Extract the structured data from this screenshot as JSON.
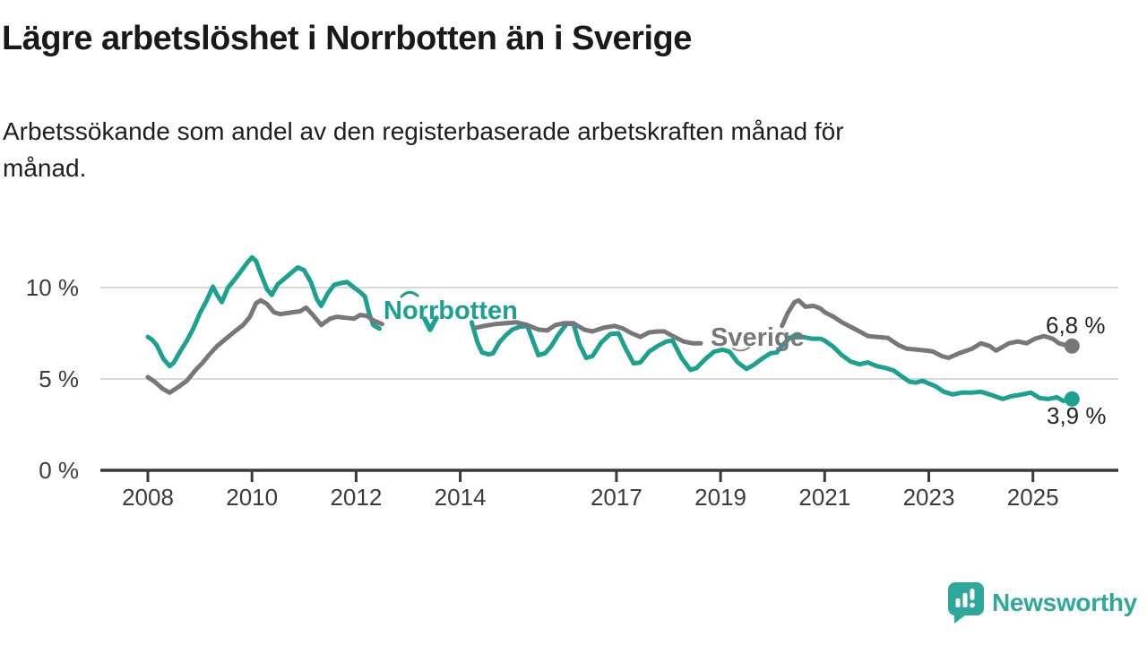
{
  "chart_data": {
    "type": "line",
    "title": "Lägre arbetslöshet i Norrbotten än i Sverige",
    "subtitle": "Arbetssökande som andel av den registerbaserade arbetskraften månad för månad.",
    "subtitle_lines": [
      "Arbetssökande som andel av den registerbaserade arbetskraften månad för",
      "månad."
    ],
    "unit": "%",
    "x_range": [
      2008.0,
      2025.75
    ],
    "y_range": [
      0,
      11.8
    ],
    "grid": "horizontal-only",
    "legend_position": "inline-labels-on-lines",
    "x_axis": {
      "ticks": [
        {
          "value": 2008,
          "label": "2008"
        },
        {
          "value": 2010,
          "label": "2010"
        },
        {
          "value": 2012,
          "label": "2012"
        },
        {
          "value": 2014,
          "label": "2014"
        },
        {
          "value": 2017,
          "label": "2017"
        },
        {
          "value": 2019,
          "label": "2019"
        },
        {
          "value": 2021,
          "label": "2021"
        },
        {
          "value": 2023,
          "label": "2023"
        },
        {
          "value": 2025,
          "label": "2025"
        }
      ]
    },
    "y_axis": {
      "ticks": [
        {
          "value": 10,
          "label": "10 %"
        },
        {
          "value": 5,
          "label": "5 %"
        },
        {
          "value": 0,
          "label": "0 %"
        }
      ]
    },
    "series": [
      {
        "name": "Norrbotten",
        "color": "#1ba18f",
        "end_value": 3.9,
        "end_label": "3,9 %",
        "segments": [
          [
            [
              2008.0,
              7.3
            ],
            [
              2008.08,
              7.15
            ],
            [
              2008.17,
              6.85
            ],
            [
              2008.3,
              6.1
            ],
            [
              2008.42,
              5.7
            ],
            [
              2008.5,
              5.9
            ],
            [
              2008.62,
              6.5
            ],
            [
              2008.75,
              7.1
            ],
            [
              2008.88,
              7.8
            ],
            [
              2009.0,
              8.6
            ],
            [
              2009.13,
              9.3
            ],
            [
              2009.25,
              10.05
            ],
            [
              2009.33,
              9.6
            ],
            [
              2009.42,
              9.2
            ],
            [
              2009.54,
              10.0
            ],
            [
              2009.67,
              10.45
            ],
            [
              2009.79,
              10.9
            ],
            [
              2009.92,
              11.4
            ],
            [
              2010.0,
              11.65
            ],
            [
              2010.08,
              11.45
            ],
            [
              2010.17,
              10.75
            ],
            [
              2010.29,
              9.9
            ],
            [
              2010.38,
              9.6
            ],
            [
              2010.5,
              10.2
            ],
            [
              2010.63,
              10.5
            ],
            [
              2010.75,
              10.8
            ],
            [
              2010.88,
              11.1
            ],
            [
              2011.0,
              10.95
            ],
            [
              2011.13,
              10.3
            ],
            [
              2011.25,
              9.35
            ],
            [
              2011.33,
              9.0
            ],
            [
              2011.46,
              9.7
            ],
            [
              2011.58,
              10.15
            ],
            [
              2011.71,
              10.25
            ],
            [
              2011.83,
              10.3
            ],
            [
              2011.96,
              10.0
            ],
            [
              2012.08,
              9.75
            ],
            [
              2012.17,
              9.5
            ],
            [
              2012.25,
              8.6
            ],
            [
              2012.33,
              7.95
            ],
            [
              2012.45,
              7.75
            ]
          ],
          [
            [
              2014.22,
              8.1
            ],
            [
              2014.33,
              7.0
            ],
            [
              2014.42,
              6.45
            ],
            [
              2014.54,
              6.35
            ],
            [
              2014.63,
              6.4
            ],
            [
              2014.75,
              7.0
            ],
            [
              2014.88,
              7.4
            ],
            [
              2015.0,
              7.7
            ],
            [
              2015.13,
              7.85
            ],
            [
              2015.29,
              7.9
            ],
            [
              2015.42,
              6.9
            ],
            [
              2015.5,
              6.3
            ],
            [
              2015.63,
              6.4
            ],
            [
              2015.75,
              6.8
            ],
            [
              2015.88,
              7.4
            ],
            [
              2016.04,
              8.0
            ],
            [
              2016.17,
              8.05
            ],
            [
              2016.29,
              6.9
            ],
            [
              2016.42,
              6.15
            ],
            [
              2016.54,
              6.25
            ],
            [
              2016.71,
              7.0
            ],
            [
              2016.88,
              7.45
            ],
            [
              2017.04,
              7.5
            ],
            [
              2017.17,
              6.7
            ],
            [
              2017.33,
              5.85
            ],
            [
              2017.46,
              5.9
            ],
            [
              2017.63,
              6.5
            ],
            [
              2017.79,
              6.8
            ],
            [
              2017.96,
              7.05
            ],
            [
              2018.08,
              7.1
            ],
            [
              2018.25,
              6.15
            ],
            [
              2018.42,
              5.5
            ],
            [
              2018.54,
              5.6
            ],
            [
              2018.71,
              6.1
            ],
            [
              2018.88,
              6.5
            ],
            [
              2019.04,
              6.6
            ],
            [
              2019.17,
              6.5
            ],
            [
              2019.33,
              5.9
            ],
            [
              2019.5,
              5.55
            ],
            [
              2019.63,
              5.75
            ],
            [
              2019.79,
              6.1
            ],
            [
              2019.96,
              6.4
            ],
            [
              2020.08,
              6.45
            ],
            [
              2020.21,
              6.9
            ],
            [
              2020.33,
              7.25
            ],
            [
              2020.46,
              7.4
            ],
            [
              2020.58,
              7.3
            ],
            [
              2020.75,
              7.2
            ],
            [
              2020.92,
              7.2
            ],
            [
              2021.0,
              7.1
            ],
            [
              2021.17,
              6.75
            ],
            [
              2021.33,
              6.3
            ],
            [
              2021.5,
              5.95
            ],
            [
              2021.67,
              5.8
            ],
            [
              2021.83,
              5.9
            ],
            [
              2022.0,
              5.7
            ],
            [
              2022.17,
              5.6
            ],
            [
              2022.33,
              5.45
            ],
            [
              2022.5,
              5.1
            ],
            [
              2022.63,
              4.85
            ],
            [
              2022.75,
              4.8
            ],
            [
              2022.88,
              4.9
            ],
            [
              2023.0,
              4.75
            ],
            [
              2023.13,
              4.6
            ],
            [
              2023.29,
              4.3
            ],
            [
              2023.46,
              4.15
            ],
            [
              2023.63,
              4.25
            ],
            [
              2023.83,
              4.25
            ],
            [
              2024.0,
              4.3
            ],
            [
              2024.17,
              4.15
            ],
            [
              2024.42,
              3.9
            ],
            [
              2024.58,
              4.05
            ],
            [
              2024.79,
              4.15
            ],
            [
              2024.96,
              4.25
            ],
            [
              2025.13,
              3.95
            ],
            [
              2025.29,
              3.9
            ],
            [
              2025.46,
              4.0
            ],
            [
              2025.58,
              3.8
            ],
            [
              2025.75,
              3.9
            ]
          ]
        ]
      },
      {
        "name": "Sverige",
        "color": "#76767b",
        "end_value": 6.8,
        "end_label": "6,8 %",
        "segments": [
          [
            [
              2008.0,
              5.1
            ],
            [
              2008.13,
              4.85
            ],
            [
              2008.29,
              4.45
            ],
            [
              2008.42,
              4.25
            ],
            [
              2008.58,
              4.55
            ],
            [
              2008.75,
              4.9
            ],
            [
              2008.92,
              5.5
            ],
            [
              2009.04,
              5.85
            ],
            [
              2009.17,
              6.3
            ],
            [
              2009.33,
              6.8
            ],
            [
              2009.5,
              7.2
            ],
            [
              2009.67,
              7.6
            ],
            [
              2009.83,
              7.95
            ],
            [
              2009.96,
              8.4
            ],
            [
              2010.08,
              9.15
            ],
            [
              2010.17,
              9.3
            ],
            [
              2010.29,
              9.1
            ],
            [
              2010.42,
              8.65
            ],
            [
              2010.54,
              8.55
            ],
            [
              2010.67,
              8.6
            ],
            [
              2010.79,
              8.65
            ],
            [
              2010.92,
              8.7
            ],
            [
              2011.04,
              8.9
            ],
            [
              2011.17,
              8.5
            ],
            [
              2011.33,
              7.95
            ],
            [
              2011.5,
              8.3
            ],
            [
              2011.63,
              8.4
            ],
            [
              2011.79,
              8.35
            ],
            [
              2011.96,
              8.3
            ],
            [
              2012.08,
              8.5
            ],
            [
              2012.21,
              8.45
            ],
            [
              2012.33,
              8.2
            ],
            [
              2012.5,
              8.0
            ]
          ],
          [
            [
              2014.3,
              7.8
            ],
            [
              2014.46,
              7.9
            ],
            [
              2014.67,
              8.0
            ],
            [
              2014.88,
              8.05
            ],
            [
              2015.08,
              8.1
            ],
            [
              2015.29,
              7.95
            ],
            [
              2015.5,
              7.7
            ],
            [
              2015.67,
              7.65
            ],
            [
              2015.83,
              7.95
            ],
            [
              2016.0,
              8.05
            ],
            [
              2016.17,
              8.05
            ],
            [
              2016.38,
              7.7
            ],
            [
              2016.54,
              7.6
            ],
            [
              2016.75,
              7.8
            ],
            [
              2016.96,
              7.9
            ],
            [
              2017.13,
              7.75
            ],
            [
              2017.29,
              7.5
            ],
            [
              2017.46,
              7.3
            ],
            [
              2017.63,
              7.55
            ],
            [
              2017.79,
              7.6
            ],
            [
              2017.92,
              7.6
            ],
            [
              2018.08,
              7.35
            ],
            [
              2018.29,
              7.05
            ],
            [
              2018.46,
              6.95
            ],
            [
              2018.62,
              6.95
            ]
          ],
          [
            [
              2020.18,
              7.9
            ],
            [
              2020.29,
              8.6
            ],
            [
              2020.42,
              9.2
            ],
            [
              2020.5,
              9.3
            ],
            [
              2020.63,
              8.95
            ],
            [
              2020.79,
              9.0
            ],
            [
              2020.92,
              8.85
            ],
            [
              2021.0,
              8.65
            ],
            [
              2021.17,
              8.4
            ],
            [
              2021.33,
              8.1
            ],
            [
              2021.5,
              7.85
            ],
            [
              2021.67,
              7.6
            ],
            [
              2021.83,
              7.35
            ],
            [
              2022.0,
              7.3
            ],
            [
              2022.21,
              7.25
            ],
            [
              2022.42,
              6.85
            ],
            [
              2022.58,
              6.65
            ],
            [
              2022.79,
              6.6
            ],
            [
              2022.96,
              6.55
            ],
            [
              2023.08,
              6.5
            ],
            [
              2023.25,
              6.25
            ],
            [
              2023.38,
              6.15
            ],
            [
              2023.58,
              6.4
            ],
            [
              2023.83,
              6.65
            ],
            [
              2024.0,
              6.95
            ],
            [
              2024.17,
              6.8
            ],
            [
              2024.29,
              6.55
            ],
            [
              2024.54,
              6.95
            ],
            [
              2024.71,
              7.05
            ],
            [
              2024.88,
              6.95
            ],
            [
              2025.04,
              7.2
            ],
            [
              2025.21,
              7.35
            ],
            [
              2025.38,
              7.2
            ],
            [
              2025.5,
              6.95
            ],
            [
              2025.63,
              6.85
            ],
            [
              2025.75,
              6.8
            ]
          ]
        ]
      }
    ],
    "annotations": {
      "norrbotten_label": "Norrbotten",
      "sverige_label": "Sverige"
    },
    "colors": {
      "accent_teal": "#1ba18f",
      "line_gray": "#76767b",
      "gridline": "#d8d8d8",
      "axis": "#3a3a3a",
      "text_dark": "#191919",
      "logo_teal": "#2da89a"
    }
  },
  "footer": {
    "brand": "Newsworthy"
  }
}
